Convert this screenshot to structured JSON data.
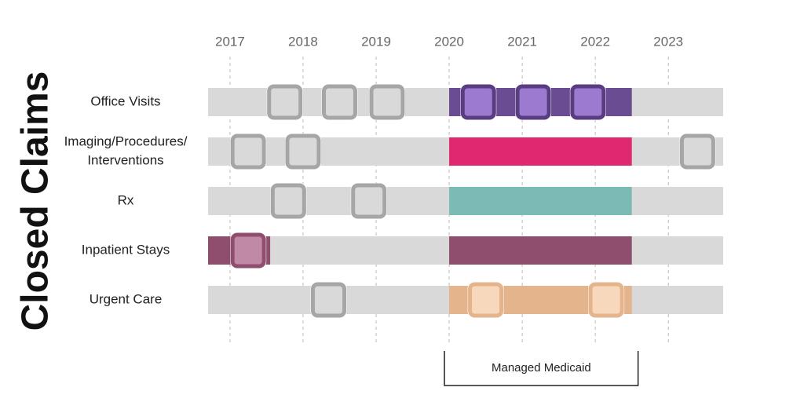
{
  "chart_data": {
    "type": "timeline",
    "title": "Closed Claims",
    "xlim": [
      2016.7,
      2023.75
    ],
    "xticks": [
      2017,
      2018,
      2019,
      2020,
      2021,
      2022,
      2023
    ],
    "grid": true,
    "track_color": "#d9d9d9",
    "event_fill": "#d9d9d9",
    "event_stroke": "#a6a6a6",
    "rows": [
      {
        "label": [
          "Office Visits"
        ],
        "color": "#6a4c93",
        "event_fill": "#9b7ad0",
        "event_stroke": "#5a3d80",
        "segments": [
          [
            2020,
            2022.5
          ]
        ],
        "events": [
          2017.75,
          2018.5,
          2019.15,
          2020.4,
          2021.15,
          2021.9
        ]
      },
      {
        "label": [
          "Imaging/Procedures/",
          "Interventions"
        ],
        "color": "#e0286f",
        "event_fill": "#e0286f",
        "event_stroke": "#b01f57",
        "segments": [
          [
            2020,
            2022.5
          ]
        ],
        "events": [
          2017.25,
          2018.0,
          2023.4
        ]
      },
      {
        "label": [
          "Rx"
        ],
        "color": "#7abcb5",
        "event_fill": "#7abcb5",
        "event_stroke": "#5a9c95",
        "segments": [
          [
            2020,
            2022.5
          ]
        ],
        "events": [
          2017.8,
          2018.9
        ]
      },
      {
        "label": [
          "Inpatient Stays"
        ],
        "color": "#8f4e6e",
        "event_fill": "#c08aa5",
        "event_stroke": "#8f4e6e",
        "segments": [
          [
            2016.7,
            2017.55
          ],
          [
            2020,
            2022.5
          ]
        ],
        "events": [
          2017.25
        ]
      },
      {
        "label": [
          "Urgent Care"
        ],
        "color": "#e4b48c",
        "event_fill": "#f8d8bd",
        "event_stroke": "#e4b48c",
        "segments": [
          [
            2020,
            2022.5
          ]
        ],
        "events": [
          2018.35,
          2020.5,
          2022.15
        ]
      }
    ],
    "bracket": {
      "label": "Managed Medicaid",
      "range": [
        2020,
        2022.5
      ]
    }
  }
}
